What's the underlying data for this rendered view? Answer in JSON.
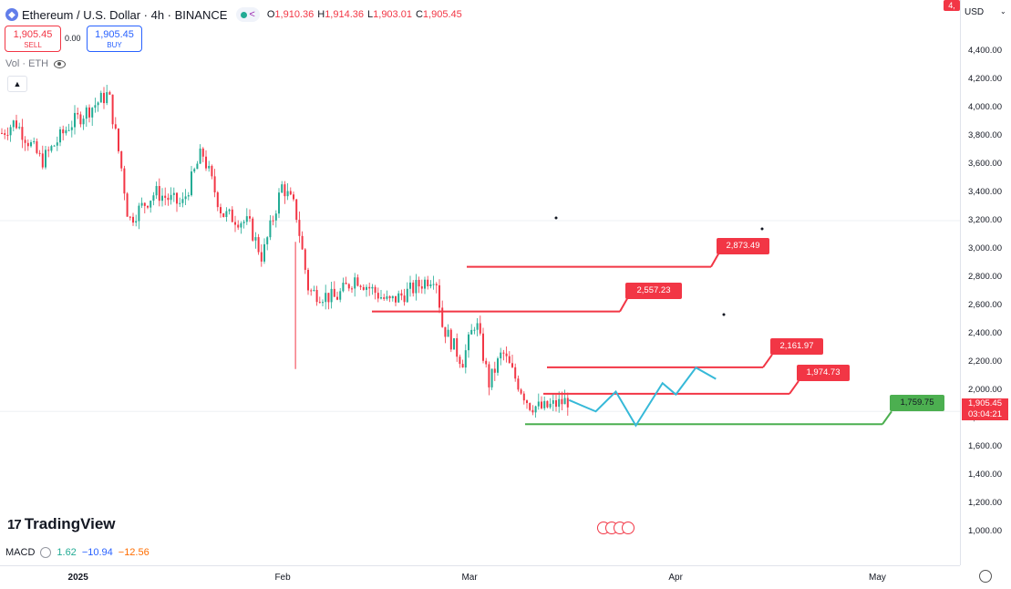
{
  "header": {
    "symbol_icon": "ethereum-icon",
    "title": "Ethereum / U.S. Dollar · 4h · BINANCE",
    "ohlc": {
      "o_label": "O",
      "o": "1,910.36",
      "h_label": "H",
      "h": "1,914.36",
      "l_label": "L",
      "l": "1,903.01",
      "c_label": "C",
      "c": "1,905.45"
    }
  },
  "trade": {
    "sell_price": "1,905.45",
    "sell_label": "SELL",
    "spread": "0.00",
    "buy_price": "1,905.45",
    "buy_label": "BUY"
  },
  "volume_indicator": {
    "label": "Vol · ETH"
  },
  "price_axis": {
    "currency": "USD",
    "ticks": [
      "4,400.00",
      "4,200.00",
      "4,000.00",
      "3,800.00",
      "3,600.00",
      "3,400.00",
      "3,200.00",
      "3,000.00",
      "2,800.00",
      "2,600.00",
      "2,400.00",
      "2,200.00",
      "2,000.00",
      "1,800.00",
      "1,600.00",
      "1,400.00",
      "1,200.00",
      "1,000.00"
    ],
    "current_price": "1,905.45",
    "countdown": "03:04:21",
    "top_marker": "4,"
  },
  "time_axis": {
    "labels": [
      "2025",
      "Feb",
      "Mar",
      "Apr",
      "May"
    ]
  },
  "annotations": {
    "levels": [
      {
        "label": "2,873.49",
        "value": 2873.49,
        "color": "#f23645"
      },
      {
        "label": "2,557.23",
        "value": 2557.23,
        "color": "#f23645"
      },
      {
        "label": "2,161.97",
        "value": 2161.97,
        "color": "#f23645"
      },
      {
        "label": "1,974.73",
        "value": 1974.73,
        "color": "#f23645"
      },
      {
        "label": "1,759.75",
        "value": 1759.75,
        "color": "#4caf50"
      }
    ]
  },
  "branding": {
    "logo_text": "TradingView"
  },
  "macd": {
    "label": "MACD",
    "v1": "1.62",
    "v2": "−10.94",
    "v3": "−12.56"
  },
  "colors": {
    "up": "#22ab94",
    "down": "#f23645",
    "projection": "#36b9d8",
    "accent": "#2962ff"
  },
  "chart_data": {
    "type": "candlestick",
    "title": "Ethereum / U.S. Dollar · 4h · BINANCE",
    "y_range": [
      950,
      4550
    ],
    "x_labels": [
      "2025",
      "Feb",
      "Mar",
      "Apr",
      "May"
    ],
    "price_path": [
      [
        "2024-12-21",
        3820
      ],
      [
        "2024-12-23",
        3900
      ],
      [
        "2024-12-27",
        3620
      ],
      [
        "2024-12-31",
        3870
      ],
      [
        "2025-01-06",
        4100
      ],
      [
        "2025-01-08",
        3550
      ],
      [
        "2025-01-09",
        3200
      ],
      [
        "2025-01-13",
        3400
      ],
      [
        "2025-01-17",
        3310
      ],
      [
        "2025-01-20",
        3690
      ],
      [
        "2025-01-23",
        3250
      ],
      [
        "2025-01-27",
        3180
      ],
      [
        "2025-01-29",
        2940
      ],
      [
        "2025-02-01",
        3450
      ],
      [
        "2025-02-03",
        3280
      ],
      [
        "2025-02-05",
        2700
      ],
      [
        "2025-02-09",
        2650
      ],
      [
        "2025-02-12",
        2800
      ],
      [
        "2025-02-17",
        2620
      ],
      [
        "2025-02-20",
        2700
      ],
      [
        "2025-02-24",
        2820
      ],
      [
        "2025-02-25",
        2460
      ],
      [
        "2025-02-28",
        2200
      ],
      [
        "2025-03-02",
        2500
      ],
      [
        "2025-03-04",
        2050
      ],
      [
        "2025-03-06",
        2270
      ],
      [
        "2025-03-08",
        2080
      ],
      [
        "2025-03-10",
        1900
      ],
      [
        "2025-03-12",
        1870
      ],
      [
        "2025-03-16",
        1930
      ]
    ],
    "projection_path": [
      [
        "2025-03-16",
        1930
      ],
      [
        "2025-03-20",
        1850
      ],
      [
        "2025-03-23",
        1990
      ],
      [
        "2025-03-26",
        1750
      ],
      [
        "2025-03-30",
        2050
      ],
      [
        "2025-04-01",
        1970
      ],
      [
        "2025-04-04",
        2160
      ],
      [
        "2025-04-07",
        2080
      ]
    ]
  }
}
